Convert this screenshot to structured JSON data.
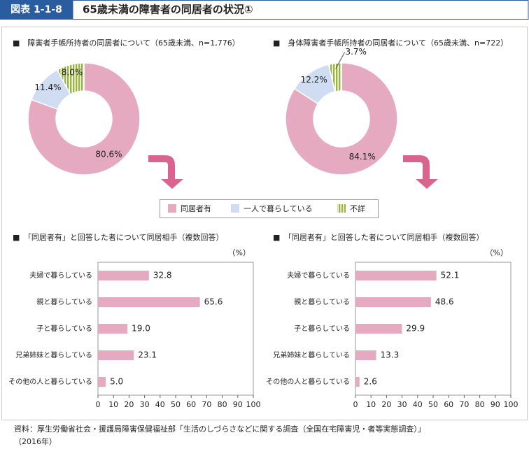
{
  "header": {
    "label": "図表 1-1-8",
    "title": "65歳未満の障害者の同居者の状況①"
  },
  "legend": {
    "labels": [
      "同居者有",
      "一人で暮らしている",
      "不詳"
    ],
    "colors": [
      "#e5a9c0",
      "#cfdcf1",
      "#9ab53b"
    ],
    "striped": [
      false,
      false,
      true
    ]
  },
  "chart_data": [
    {
      "type": "pie",
      "title": "■　障害者手帳所持者の同居者について（65歳未満、n=1,776）",
      "values": [
        80.6,
        11.4,
        8.0
      ],
      "value_labels": [
        "80.6%",
        "11.4%",
        "8.0%"
      ]
    },
    {
      "type": "pie",
      "title": "■　身体障害者手帳所持者の同居者について（65歳未満、n=722）",
      "values": [
        84.1,
        12.2,
        3.7
      ],
      "value_labels": [
        "84.1%",
        "12.2%",
        "3.7%"
      ]
    },
    {
      "type": "barh",
      "title": "■　「同居者有」と回答した者について同居相手（複数回答）",
      "unit": "（%）",
      "categories": [
        "夫婦で暮らしている",
        "親と暮らしている",
        "子と暮らしている",
        "兄弟姉妹と暮らしている",
        "その他の人と暮らしている"
      ],
      "values": [
        32.8,
        65.6,
        19.0,
        23.1,
        5.0
      ],
      "value_labels": [
        "32.8",
        "65.6",
        "19.0",
        "23.1",
        "5.0"
      ],
      "color": "#e5a9c0",
      "xlim": [
        0,
        100
      ],
      "xticks": [
        0,
        10,
        20,
        30,
        40,
        50,
        60,
        70,
        80,
        90,
        100
      ]
    },
    {
      "type": "barh",
      "title": "■　「同居者有」と回答した者について同居相手（複数回答）",
      "unit": "（%）",
      "categories": [
        "夫婦で暮らしている",
        "親と暮らしている",
        "子と暮らしている",
        "兄弟姉妹と暮らしている",
        "その他の人と暮らしている"
      ],
      "values": [
        52.1,
        48.6,
        29.9,
        13.3,
        2.6
      ],
      "color": "#e5a9c0",
      "xlim": [
        0,
        100
      ],
      "xticks": [
        0,
        10,
        20,
        30,
        40,
        50,
        60,
        70,
        80,
        90,
        100
      ]
    }
  ],
  "source": [
    "資料：厚生労働省社会・援護局障害保健福祉部「生活のしづらさなどに関する調査（全国在宅障害児・者等実態調査）」",
    "（2016年）"
  ]
}
